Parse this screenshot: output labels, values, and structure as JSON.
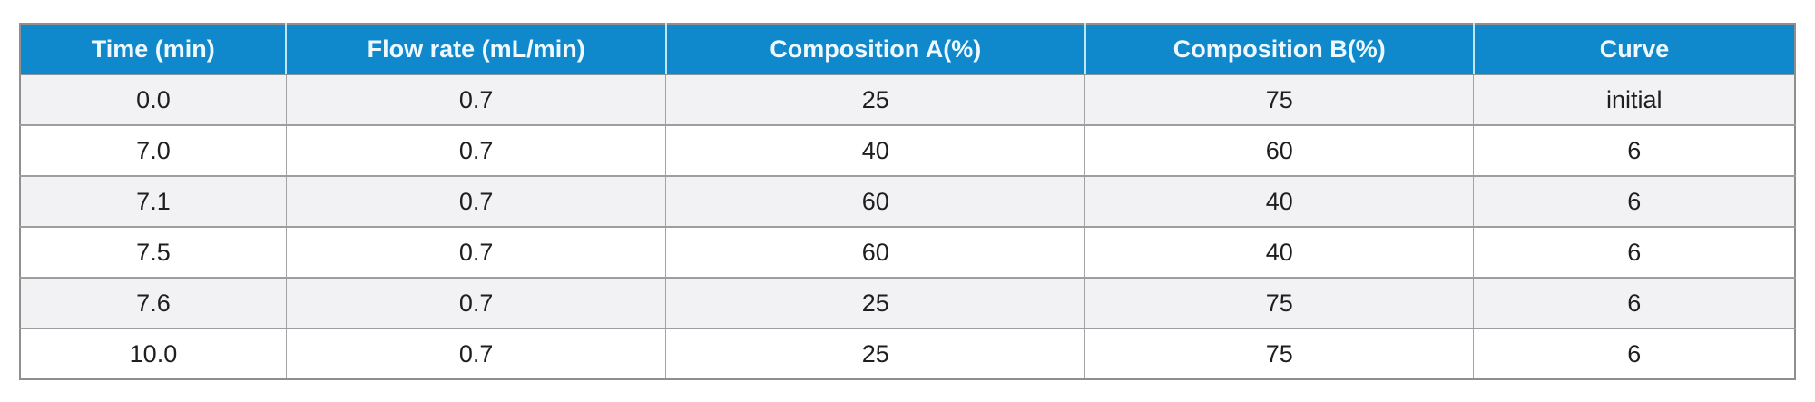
{
  "chart_data": {
    "type": "table",
    "title": "",
    "columns": [
      "Time (min)",
      "Flow rate (mL/min)",
      "Composition A(%)",
      "Composition B(%)",
      "Curve"
    ],
    "rows": [
      [
        "0.0",
        "0.7",
        "25",
        "75",
        "initial"
      ],
      [
        "7.0",
        "0.7",
        "40",
        "60",
        "6"
      ],
      [
        "7.1",
        "0.7",
        "60",
        "40",
        "6"
      ],
      [
        "7.5",
        "0.7",
        "60",
        "40",
        "6"
      ],
      [
        "7.6",
        "0.7",
        "25",
        "75",
        "6"
      ],
      [
        "10.0",
        "0.7",
        "25",
        "75",
        "6"
      ]
    ],
    "layout": {
      "striped": true,
      "stripe_pattern": "odd-data-rows-gray-starting-with-first",
      "header_position": "top"
    }
  },
  "colors": {
    "header_bg": "#0f88cc",
    "header_text": "#eef9ff",
    "header_divider": "#bfe5f6",
    "header_bottom_border": "#86979f",
    "row_alt_bg": "#f2f2f4",
    "row_bg": "#ffffff",
    "inner_border": "#a3a3a3",
    "row_border": "#9e9e9e",
    "outer_border": "#8f8f8f",
    "body_text": "#1f1f1f",
    "page_bg": "#ffffff"
  }
}
